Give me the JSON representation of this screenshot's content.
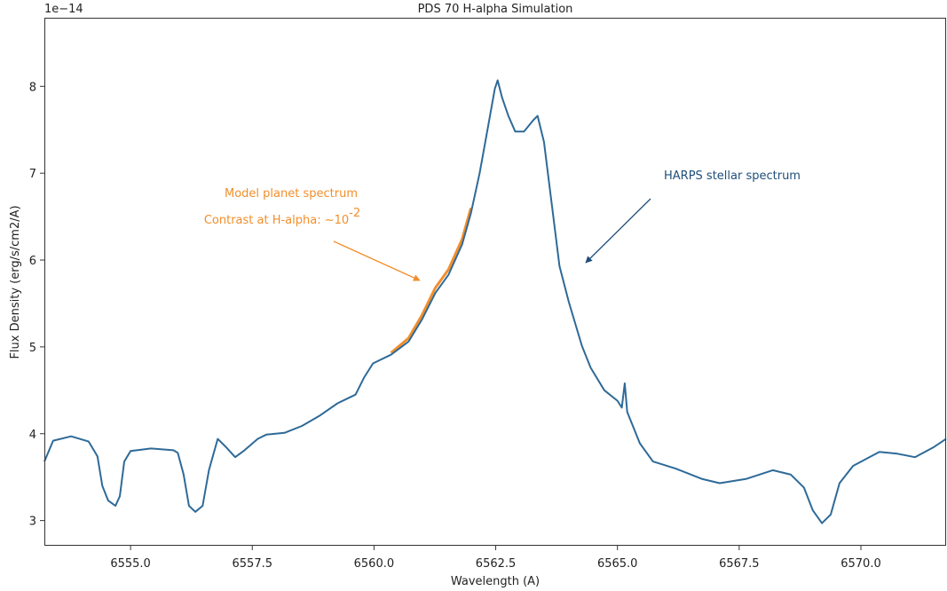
{
  "chart_data": {
    "type": "line",
    "title": "PDS 70 H-alpha Simulation",
    "x_label": "Wavelength (A)",
    "y_label": "Flux Density (erg/s/cm2/A)",
    "y_offset_label": "1e−14",
    "xlim": [
      6553.23,
      6571.75
    ],
    "ylim": [
      2.71,
      8.79
    ],
    "xticks": [
      {
        "value": 6555,
        "label": "6555.0"
      },
      {
        "value": 6557.5,
        "label": "6557.5"
      },
      {
        "value": 6560,
        "label": "6560.0"
      },
      {
        "value": 6562.5,
        "label": "6562.5"
      },
      {
        "value": 6565,
        "label": "6565.0"
      },
      {
        "value": 6567.5,
        "label": "6567.5"
      },
      {
        "value": 6570,
        "label": "6570.0"
      }
    ],
    "yticks": [
      3,
      4,
      5,
      6,
      7,
      8
    ],
    "grid": false,
    "series": [
      {
        "name": "Model planet spectrum",
        "color": "#f28e2b",
        "x": [
          6560.35,
          6560.71,
          6560.99,
          6561.26,
          6561.53,
          6561.81,
          6561.99
        ],
        "values": [
          4.93,
          5.1,
          5.37,
          5.68,
          5.89,
          6.24,
          6.6
        ]
      },
      {
        "name": "HARPS stellar spectrum",
        "color": "#2e6a98",
        "x": [
          6553.23,
          6553.41,
          6553.78,
          6554.14,
          6554.32,
          6554.42,
          6554.54,
          6554.69,
          6554.78,
          6554.87,
          6555.0,
          6555.42,
          6555.88,
          6555.97,
          6556.09,
          6556.2,
          6556.33,
          6556.48,
          6556.61,
          6556.79,
          6556.97,
          6557.15,
          6557.34,
          6557.61,
          6557.79,
          6558.16,
          6558.52,
          6558.89,
          6559.25,
          6559.62,
          6559.8,
          6559.98,
          6560.35,
          6560.71,
          6560.99,
          6561.26,
          6561.53,
          6561.81,
          6561.99,
          6562.17,
          6562.35,
          6562.48,
          6562.54,
          6562.63,
          6562.76,
          6562.9,
          6563.08,
          6563.27,
          6563.36,
          6563.49,
          6563.63,
          6563.81,
          6564.0,
          6564.27,
          6564.45,
          6564.73,
          6565.0,
          6565.09,
          6565.15,
          6565.2,
          6565.46,
          6565.73,
          6566.19,
          6566.73,
          6567.1,
          6567.65,
          6568.19,
          6568.56,
          6568.83,
          6569.01,
          6569.2,
          6569.38,
          6569.56,
          6569.84,
          6570.38,
          6570.75,
          6571.11,
          6571.48,
          6571.75
        ],
        "values": [
          3.68,
          3.92,
          3.97,
          3.91,
          3.74,
          3.4,
          3.23,
          3.17,
          3.28,
          3.68,
          3.8,
          3.83,
          3.81,
          3.78,
          3.53,
          3.17,
          3.1,
          3.17,
          3.58,
          3.94,
          3.84,
          3.73,
          3.81,
          3.94,
          3.99,
          4.01,
          4.09,
          4.21,
          4.35,
          4.45,
          4.65,
          4.81,
          4.91,
          5.06,
          5.32,
          5.62,
          5.83,
          6.18,
          6.54,
          7.0,
          7.56,
          7.97,
          8.07,
          7.87,
          7.66,
          7.48,
          7.48,
          7.61,
          7.66,
          7.36,
          6.74,
          5.93,
          5.52,
          5.01,
          4.76,
          4.5,
          4.38,
          4.3,
          4.58,
          4.25,
          3.89,
          3.68,
          3.6,
          3.48,
          3.43,
          3.48,
          3.58,
          3.53,
          3.38,
          3.12,
          2.97,
          3.07,
          3.43,
          3.63,
          3.79,
          3.77,
          3.73,
          3.84,
          3.94
        ]
      }
    ],
    "annotations": [
      {
        "text": "Model planet spectrum",
        "color": "#f28e2b"
      },
      {
        "text": "Contrast at H-alpha: ~10",
        "superscript": "-2",
        "color": "#f28e2b"
      },
      {
        "text": "HARPS stellar spectrum",
        "color": "#1f4e79"
      }
    ]
  }
}
